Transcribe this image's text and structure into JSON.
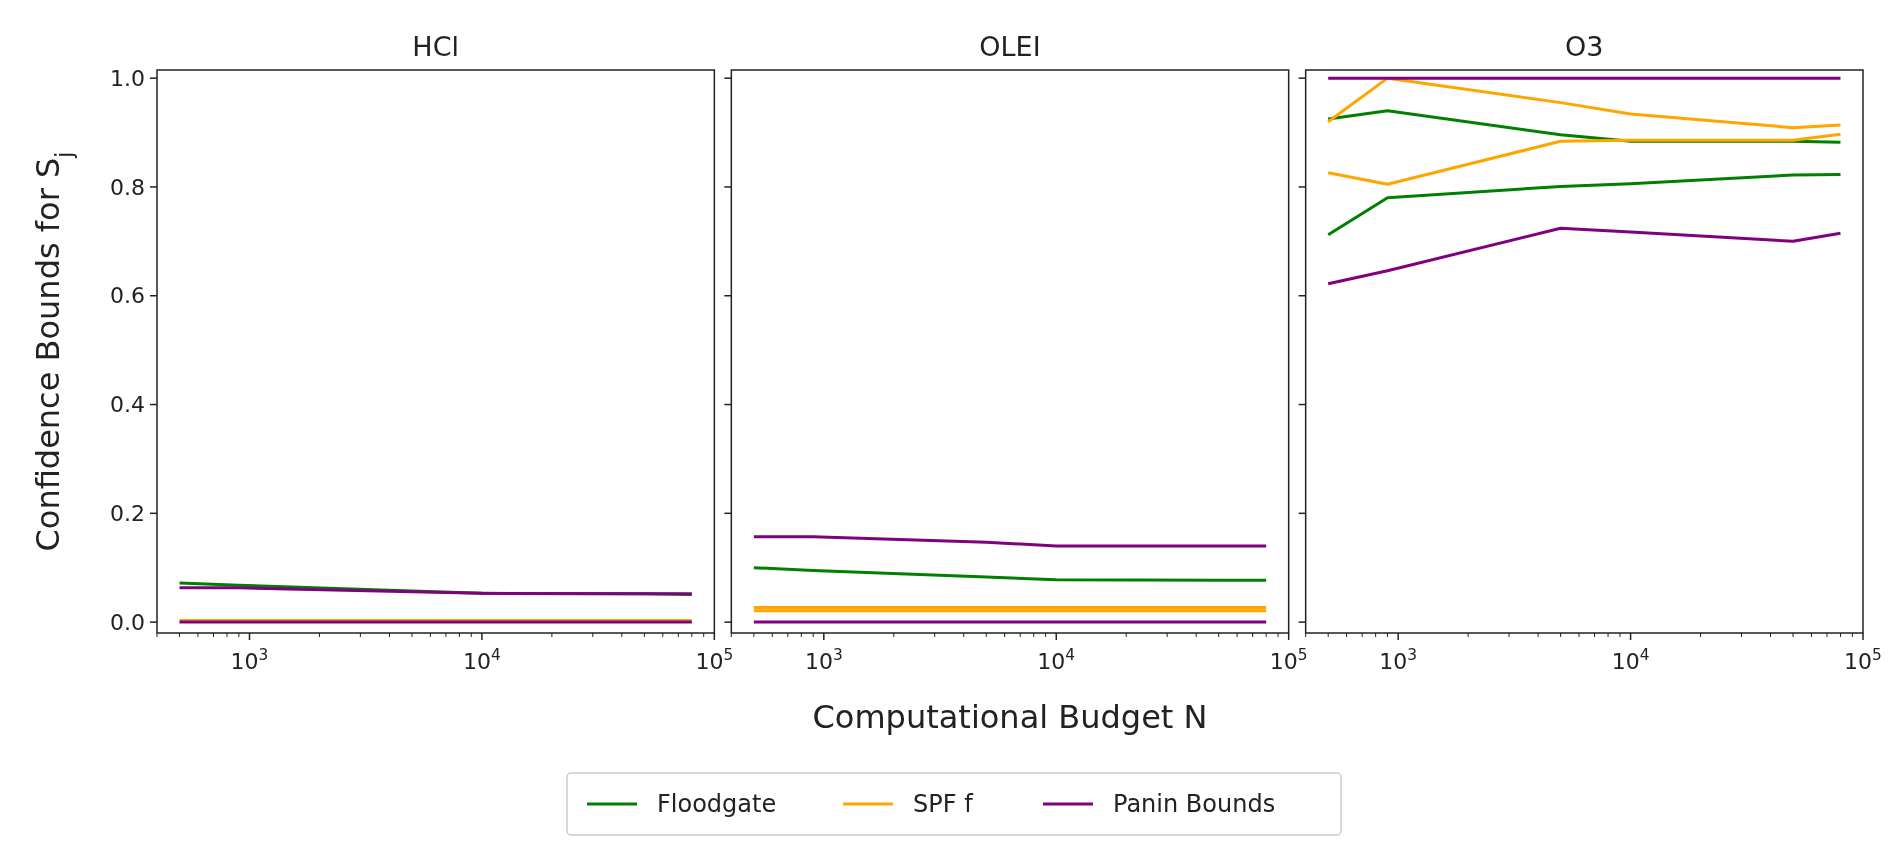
{
  "chart_data": [
    {
      "type": "line",
      "title": "HCl",
      "ylabel": "Confidence Bounds for S$_{j}$",
      "log": "x",
      "xlim": [
        400,
        100000
      ],
      "ylim": [
        -0.02,
        1.015
      ],
      "xticks": [
        {
          "value": 1000,
          "label": "10$^{3}$"
        },
        {
          "value": 10000,
          "label": "10$^{4}$"
        },
        {
          "value": 100000,
          "label": "10$^{5}$"
        }
      ],
      "yticks": [
        {
          "value": 0,
          "label": "0.0"
        },
        {
          "value": 0.2,
          "label": "0.2"
        },
        {
          "value": 0.4,
          "label": "0.4"
        },
        {
          "value": 0.6,
          "label": "0.6"
        },
        {
          "value": 0.8,
          "label": "0.8"
        },
        {
          "value": 1,
          "label": "1.0"
        }
      ],
      "grid": false,
      "x": [
        500,
        900,
        5000,
        10000,
        50000,
        80000
      ],
      "series": [
        {
          "color": "#ffa500",
          "values": [
            0.003,
            0.003,
            0.003,
            0.003,
            0.003,
            0.003
          ]
        },
        {
          "color": "#800080",
          "values": [
            0,
            0,
            0,
            0,
            0,
            0
          ]
        },
        {
          "color": "#008000",
          "values": [
            0.072,
            0.068,
            0.057,
            0.053,
            0.052,
            0.051
          ]
        },
        {
          "color": "#800080",
          "values": [
            0.063,
            0.063,
            0.056,
            0.053,
            0.052,
            0.052
          ]
        }
      ]
    },
    {
      "type": "line",
      "title": "OLEI",
      "xlabel": "Computational Budget N",
      "legend": "bottom",
      "tick_labels": "x",
      "log": "x",
      "xlim": [
        400,
        100000
      ],
      "ylim": [
        -0.02,
        1.015
      ],
      "xticks": [
        {
          "value": 1000,
          "label": "10$^{3}$"
        },
        {
          "value": 10000,
          "label": "10$^{4}$"
        },
        {
          "value": 100000,
          "label": "10$^{5}$"
        }
      ],
      "yticks": [
        0,
        0.2,
        0.4,
        0.6,
        0.8,
        1
      ],
      "grid": false,
      "x": [
        500,
        900,
        5000,
        10000,
        50000,
        80000
      ],
      "series": [
        {
          "name": "Floodgate",
          "color": "#008000",
          "values": [
            0.1,
            0.095,
            0.083,
            0.078,
            0.077,
            0.077
          ]
        },
        {
          "name": "SPF f",
          "color": "#ffa500",
          "values": [
            0.027,
            0.027,
            0.027,
            0.027,
            0.027,
            0.027
          ]
        },
        {
          "color": "#ffa500",
          "values": [
            0.021,
            0.021,
            0.021,
            0.021,
            0.021,
            0.021
          ]
        },
        {
          "name": "Panin Bounds",
          "color": "#800080",
          "values": [
            0.157,
            0.157,
            0.147,
            0.14,
            0.14,
            0.14
          ]
        },
        {
          "color": "#800080",
          "values": [
            0,
            0,
            0,
            0,
            0,
            0
          ]
        }
      ]
    },
    {
      "type": "line",
      "title": "O3",
      "tick_labels": "x",
      "log": "x",
      "xlim": [
        400,
        100000
      ],
      "ylim": [
        -0.02,
        1.015
      ],
      "xticks": [
        {
          "value": 1000,
          "label": "10$^{3}$"
        },
        {
          "value": 10000,
          "label": "10$^{4}$"
        },
        {
          "value": 100000,
          "label": "10$^{5}$"
        }
      ],
      "yticks": [
        0,
        0.2,
        0.4,
        0.6,
        0.8,
        1
      ],
      "grid": false,
      "x": [
        500,
        900,
        5000,
        10000,
        50000,
        80000
      ],
      "series": [
        {
          "color": "#008000",
          "values": [
            0.925,
            0.94,
            0.896,
            0.884,
            0.884,
            0.882
          ]
        },
        {
          "color": "#008000",
          "values": [
            0.712,
            0.78,
            0.801,
            0.806,
            0.822,
            0.823
          ]
        },
        {
          "color": "#ffa500",
          "values": [
            0.92,
            1.0,
            0.955,
            0.934,
            0.909,
            0.914
          ]
        },
        {
          "color": "#ffa500",
          "values": [
            0.826,
            0.805,
            0.884,
            0.886,
            0.886,
            0.897
          ]
        },
        {
          "color": "#800080",
          "values": [
            1,
            1,
            1,
            1,
            1,
            1
          ]
        },
        {
          "color": "#800080",
          "values": [
            0.622,
            0.646,
            0.724,
            0.717,
            0.7,
            0.715
          ]
        }
      ]
    }
  ]
}
